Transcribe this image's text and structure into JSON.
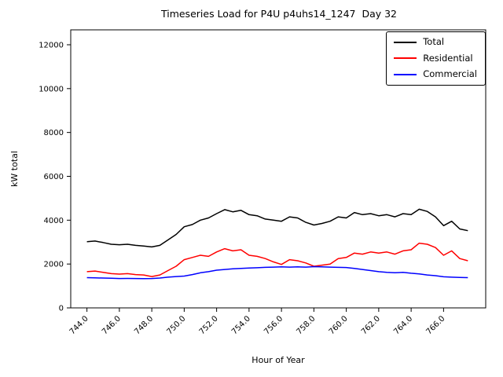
{
  "chart_data": {
    "type": "line",
    "title": "Timeseries Load for P4U p4uhs14_1247  Day 32",
    "xlabel": "Hour of Year",
    "ylabel": "kW total",
    "xlim": [
      743.0,
      768.6
    ],
    "ylim": [
      0,
      12680
    ],
    "grid": false,
    "legend_position": "upper right",
    "xticks": [
      744,
      746,
      748,
      750,
      752,
      754,
      756,
      758,
      760,
      762,
      764,
      766
    ],
    "xtick_labels": [
      "744.0",
      "746.0",
      "748.0",
      "750.0",
      "752.0",
      "754.0",
      "756.0",
      "758.0",
      "760.0",
      "762.0",
      "764.0",
      "766.0"
    ],
    "yticks": [
      0,
      2000,
      4000,
      6000,
      8000,
      10000,
      12000
    ],
    "ytick_labels": [
      "0",
      "2000",
      "4000",
      "6000",
      "8000",
      "10000",
      "12000"
    ],
    "x": [
      744.0,
      744.5,
      745.0,
      745.5,
      746.0,
      746.5,
      747.0,
      747.5,
      748.0,
      748.5,
      749.0,
      749.5,
      750.0,
      750.5,
      751.0,
      751.5,
      752.0,
      752.5,
      753.0,
      753.5,
      754.0,
      754.5,
      755.0,
      755.5,
      756.0,
      756.5,
      757.0,
      757.5,
      758.0,
      758.5,
      759.0,
      759.5,
      760.0,
      760.5,
      761.0,
      761.5,
      762.0,
      762.5,
      763.0,
      763.5,
      764.0,
      764.5,
      765.0,
      765.5,
      766.0,
      766.5,
      767.0,
      767.5
    ],
    "series": [
      {
        "name": "Total",
        "color": "#000000",
        "values": [
          3020,
          3050,
          2980,
          2900,
          2880,
          2900,
          2850,
          2820,
          2780,
          2850,
          3100,
          3350,
          3700,
          3800,
          4000,
          4100,
          4300,
          4480,
          4380,
          4450,
          4250,
          4200,
          4050,
          4000,
          3950,
          4150,
          4100,
          3900,
          3780,
          3850,
          3950,
          4150,
          4100,
          4350,
          4250,
          4300,
          4200,
          4250,
          4150,
          4300,
          4250,
          4500,
          4400,
          4150,
          3750,
          3950,
          3600,
          3520
        ]
      },
      {
        "name": "Residential",
        "color": "#ff0000",
        "values": [
          1650,
          1680,
          1620,
          1560,
          1540,
          1560,
          1520,
          1500,
          1430,
          1500,
          1700,
          1900,
          2200,
          2300,
          2400,
          2350,
          2550,
          2700,
          2600,
          2650,
          2400,
          2350,
          2250,
          2100,
          1980,
          2200,
          2150,
          2050,
          1900,
          1950,
          2000,
          2250,
          2300,
          2500,
          2450,
          2550,
          2500,
          2550,
          2450,
          2600,
          2650,
          2950,
          2900,
          2750,
          2400,
          2600,
          2250,
          2150
        ]
      },
      {
        "name": "Commercial",
        "color": "#0000ff",
        "values": [
          1380,
          1370,
          1360,
          1350,
          1340,
          1345,
          1340,
          1335,
          1340,
          1360,
          1400,
          1430,
          1450,
          1520,
          1600,
          1650,
          1720,
          1750,
          1780,
          1800,
          1820,
          1830,
          1850,
          1860,
          1870,
          1860,
          1870,
          1860,
          1880,
          1870,
          1860,
          1850,
          1840,
          1800,
          1750,
          1700,
          1650,
          1620,
          1600,
          1620,
          1580,
          1550,
          1500,
          1470,
          1420,
          1400,
          1390,
          1380
        ]
      }
    ]
  }
}
